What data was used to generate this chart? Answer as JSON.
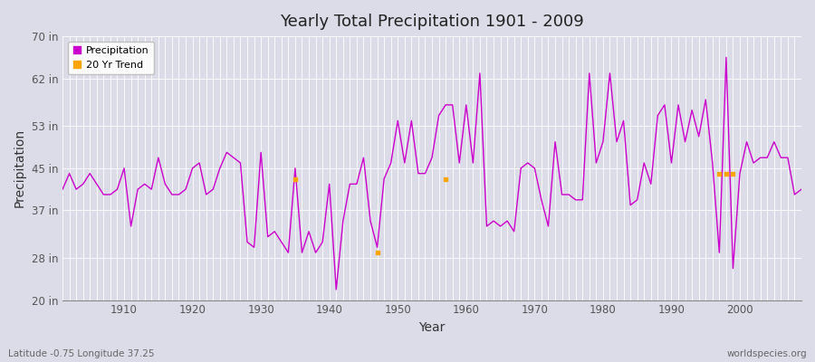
{
  "title": "Yearly Total Precipitation 1901 - 2009",
  "xlabel": "Year",
  "ylabel": "Precipitation",
  "subtitle_left": "Latitude -0.75 Longitude 37.25",
  "subtitle_right": "worldspecies.org",
  "bg_color": "#dcdce8",
  "plot_bg_color": "#dcdce8",
  "line_color": "#cc00cc",
  "trend_color": "#ffa500",
  "ylim": [
    20,
    70
  ],
  "yticks": [
    20,
    28,
    37,
    45,
    53,
    62,
    70
  ],
  "ytick_labels": [
    "20 in",
    "28 in",
    "37 in",
    "45 in",
    "53 in",
    "62 in",
    "70 in"
  ],
  "years": [
    1901,
    1902,
    1903,
    1904,
    1905,
    1906,
    1907,
    1908,
    1909,
    1910,
    1911,
    1912,
    1913,
    1914,
    1915,
    1916,
    1917,
    1918,
    1919,
    1920,
    1921,
    1922,
    1923,
    1924,
    1925,
    1926,
    1927,
    1928,
    1929,
    1930,
    1931,
    1932,
    1933,
    1934,
    1935,
    1936,
    1937,
    1938,
    1939,
    1940,
    1941,
    1942,
    1943,
    1944,
    1945,
    1946,
    1947,
    1948,
    1949,
    1950,
    1951,
    1952,
    1953,
    1954,
    1955,
    1956,
    1957,
    1958,
    1959,
    1960,
    1961,
    1962,
    1963,
    1964,
    1965,
    1966,
    1967,
    1968,
    1969,
    1970,
    1971,
    1972,
    1973,
    1974,
    1975,
    1976,
    1977,
    1978,
    1979,
    1980,
    1981,
    1982,
    1983,
    1984,
    1985,
    1986,
    1987,
    1988,
    1989,
    1990,
    1991,
    1992,
    1993,
    1994,
    1995,
    1996,
    1997,
    1998,
    1999,
    2000,
    2001,
    2002,
    2003,
    2004,
    2005,
    2006,
    2007,
    2008,
    2009
  ],
  "precip": [
    41,
    44,
    41,
    42,
    44,
    42,
    40,
    40,
    41,
    45,
    34,
    41,
    42,
    41,
    47,
    42,
    40,
    40,
    41,
    45,
    46,
    40,
    41,
    45,
    48,
    47,
    46,
    31,
    30,
    48,
    32,
    33,
    31,
    29,
    45,
    29,
    33,
    29,
    31,
    42,
    22,
    35,
    42,
    42,
    47,
    35,
    30,
    43,
    46,
    54,
    46,
    54,
    44,
    44,
    47,
    55,
    57,
    57,
    46,
    57,
    46,
    63,
    34,
    35,
    34,
    35,
    33,
    45,
    46,
    45,
    39,
    34,
    50,
    40,
    40,
    39,
    39,
    63,
    46,
    50,
    63,
    50,
    54,
    38,
    39,
    46,
    42,
    55,
    57,
    46,
    57,
    50,
    56,
    51,
    58,
    46,
    29,
    66,
    26,
    44,
    50,
    46,
    47,
    47,
    50,
    47,
    47,
    40,
    41
  ],
  "trend_points": [
    {
      "year": 1935,
      "value": 43
    },
    {
      "year": 1947,
      "value": 29
    },
    {
      "year": 1957,
      "value": 43
    },
    {
      "year": 1997,
      "value": 44
    },
    {
      "year": 1998,
      "value": 44
    },
    {
      "year": 1999,
      "value": 44
    }
  ],
  "legend_labels": [
    "Precipitation",
    "20 Yr Trend"
  ],
  "grid_color": "#ffffff",
  "grid_linewidth": 0.6,
  "minor_grid": true
}
